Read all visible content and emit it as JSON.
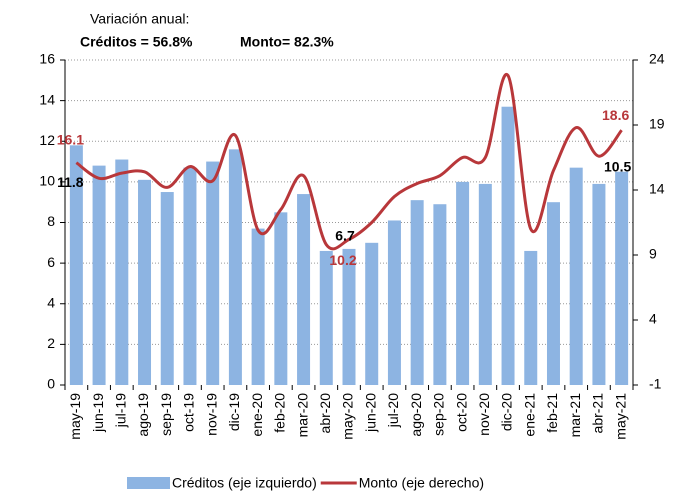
{
  "chart_data": {
    "type": "bar_line",
    "annotations": [
      "Variación anual:",
      "Créditos = 56.8%",
      "Monto= 82.3%"
    ],
    "categories": [
      "may-19",
      "jun-19",
      "jul-19",
      "ago-19",
      "sep-19",
      "oct-19",
      "nov-19",
      "dic-19",
      "ene-20",
      "feb-20",
      "mar-20",
      "abr-20",
      "may-20",
      "jun-20",
      "jul-20",
      "ago-20",
      "sep-20",
      "oct-20",
      "nov-20",
      "dic-20",
      "ene-21",
      "feb-21",
      "mar-21",
      "abr-21",
      "may-21"
    ],
    "series": [
      {
        "name": "Créditos (eje izquierdo)",
        "type": "bar",
        "color": "#8db4e2",
        "values": [
          11.8,
          10.8,
          11.1,
          10.1,
          9.5,
          10.7,
          11.0,
          11.6,
          7.7,
          8.5,
          9.4,
          6.6,
          6.7,
          7.0,
          8.1,
          9.1,
          8.9,
          10.0,
          9.9,
          13.7,
          6.6,
          9.0,
          10.7,
          9.9,
          10.5
        ],
        "value_labels": [
          "11.8",
          null,
          null,
          null,
          null,
          null,
          null,
          null,
          null,
          null,
          null,
          null,
          "6.7",
          null,
          null,
          null,
          null,
          null,
          null,
          null,
          null,
          null,
          null,
          null,
          "10.5"
        ]
      },
      {
        "name": "Monto (eje derecho)",
        "type": "line",
        "axis": "y2",
        "color": "#b8373a",
        "values": [
          16.1,
          14.9,
          15.3,
          15.4,
          14.2,
          15.8,
          14.7,
          18.2,
          10.9,
          12.5,
          15.1,
          9.8,
          10.2,
          11.5,
          13.5,
          14.5,
          15.1,
          16.5,
          16.5,
          22.8,
          11.0,
          15.5,
          18.8,
          16.6,
          18.6
        ],
        "value_labels": [
          "16.1",
          null,
          null,
          null,
          null,
          null,
          null,
          null,
          null,
          null,
          null,
          null,
          "10.2",
          null,
          null,
          null,
          null,
          null,
          null,
          null,
          null,
          null,
          null,
          null,
          "18.6"
        ]
      }
    ],
    "ylim": [
      0,
      16
    ],
    "yticks": [
      0,
      2,
      4,
      6,
      8,
      10,
      12,
      14,
      16
    ],
    "y2lim": [
      -1,
      24
    ],
    "y2ticks": [
      -1,
      4,
      9,
      14,
      19,
      24
    ],
    "grid": true,
    "legend": "bottom"
  }
}
